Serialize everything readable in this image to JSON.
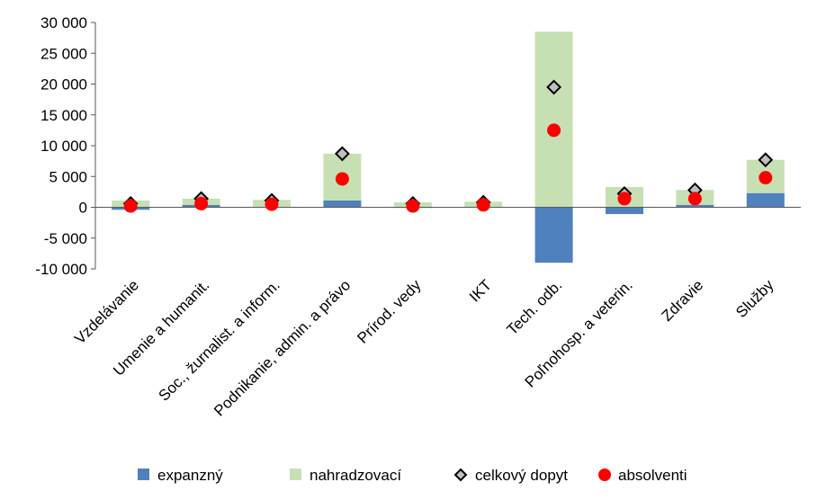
{
  "chart_data": {
    "type": "bar",
    "stacked": true,
    "categories": [
      "Vzdelávanie",
      "Umenie a humanit.",
      "Soc., žurnalist. a inform.",
      "Podnikanie, admin. a právo",
      "Prírod. vedy",
      "IKT",
      "Tech. odb.",
      "Poľnohosp. a veterin.",
      "Zdravie",
      "Služby"
    ],
    "series": [
      {
        "name": "expanzný",
        "kind": "bar",
        "color": "#4F81BD",
        "values": [
          -400,
          400,
          100,
          1100,
          -100,
          100,
          -9000,
          -1100,
          400,
          2300
        ]
      },
      {
        "name": "nahradzovací",
        "kind": "bar",
        "color": "#C6E0B4",
        "values": [
          1100,
          1000,
          1100,
          7600,
          800,
          800,
          28500,
          3300,
          2400,
          5400
        ]
      },
      {
        "name": "celkový dopyt",
        "kind": "marker",
        "marker": "diamond",
        "color": "#BFBFBF",
        "values": [
          600,
          1400,
          1100,
          8700,
          600,
          800,
          19500,
          2200,
          2800,
          7700
        ]
      },
      {
        "name": "absolventi",
        "kind": "marker",
        "marker": "circle",
        "color": "#FF0000",
        "values": [
          200,
          600,
          500,
          4600,
          200,
          400,
          12500,
          1400,
          1400,
          4800
        ]
      }
    ],
    "yticks": [
      "30 000",
      "25 000",
      "20 000",
      "15 000",
      "10 000",
      "5 000",
      "0",
      "-5 000",
      "-10 000"
    ],
    "ytick_values": [
      30000,
      25000,
      20000,
      15000,
      10000,
      5000,
      0,
      -5000,
      -10000
    ],
    "ylim": [
      -10000,
      30000
    ],
    "grid": false,
    "legend_position": "bottom",
    "title": "",
    "xlabel": "",
    "ylabel": ""
  }
}
